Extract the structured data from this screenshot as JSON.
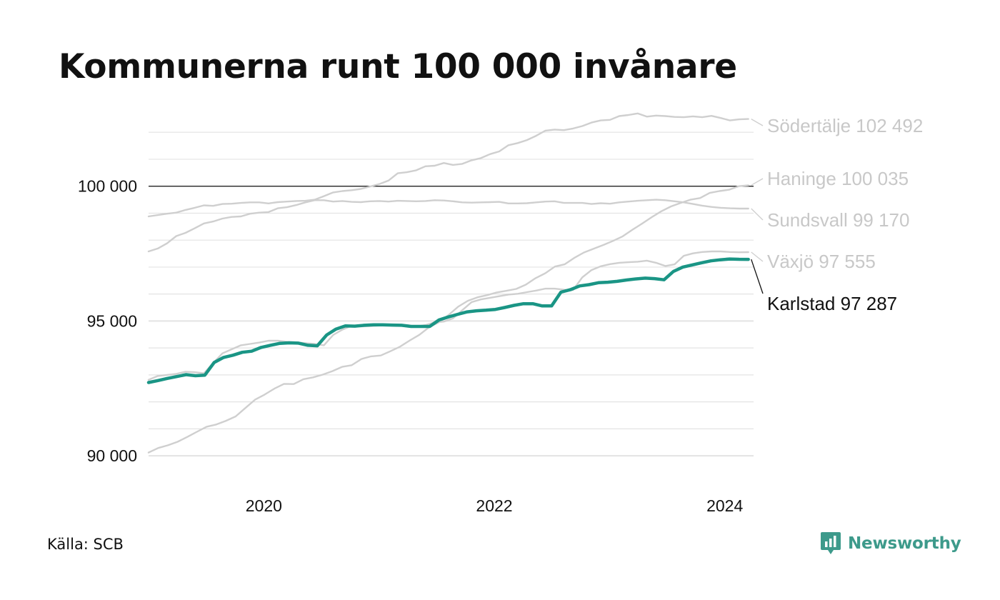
{
  "title": "Kommunerna runt 100 000 invånare",
  "source": "Källa: SCB",
  "brand": {
    "name": "Newsworthy",
    "icon": "newsworthy-logo-icon",
    "color": "#3d9a8b"
  },
  "colors": {
    "highlight": "#1a9585",
    "muted": "#cfcfcf",
    "grid": "#e3e3e3",
    "axis": "#111111",
    "mutedLabel": "#c8c8c8"
  },
  "chart_data": {
    "type": "line",
    "ylim": [
      89500,
      102800
    ],
    "xlim": [
      2019.0,
      2024.25
    ],
    "yticks": [
      {
        "value": 90000,
        "label": "90 000"
      },
      {
        "value": 95000,
        "label": "95 000"
      },
      {
        "value": 100000,
        "label": "100 000"
      }
    ],
    "xticks": [
      {
        "value": 2020.0,
        "label": "2020"
      },
      {
        "value": 2022.0,
        "label": "2022"
      },
      {
        "value": 2024.0,
        "label": "2024"
      }
    ],
    "reference_line": 100000,
    "grid": true,
    "x_start": 2019.0,
    "x_step": 0.0833333,
    "series": [
      {
        "name": "Södertälje",
        "label": "Södertälje 102 492",
        "last_value": "102 492",
        "highlight": false,
        "values": [
          98880,
          98930,
          98980,
          99020,
          99120,
          99200,
          99290,
          99270,
          99340,
          99350,
          99380,
          99400,
          99400,
          99360,
          99410,
          99430,
          99450,
          99460,
          99500,
          99630,
          99770,
          99820,
          99850,
          99900,
          99990,
          100080,
          100210,
          100480,
          100520,
          100590,
          100740,
          100760,
          100860,
          100790,
          100830,
          100960,
          101040,
          101190,
          101290,
          101520,
          101600,
          101710,
          101870,
          102060,
          102100,
          102080,
          102140,
          102230,
          102360,
          102440,
          102460,
          102600,
          102640,
          102700,
          102580,
          102620,
          102600,
          102570,
          102560,
          102590,
          102560,
          102610,
          102530,
          102440,
          102480,
          102492
        ]
      },
      {
        "name": "Haninge",
        "label": "Haninge 100 035",
        "last_value": "100 035",
        "highlight": false,
        "values": [
          90120,
          90290,
          90390,
          90520,
          90700,
          90890,
          91080,
          91160,
          91300,
          91460,
          91770,
          92080,
          92270,
          92490,
          92670,
          92660,
          92840,
          92910,
          93010,
          93140,
          93300,
          93360,
          93590,
          93690,
          93720,
          93880,
          94050,
          94280,
          94490,
          94770,
          94950,
          95220,
          95530,
          95750,
          95880,
          95960,
          96060,
          96120,
          96190,
          96350,
          96590,
          96770,
          97020,
          97100,
          97340,
          97540,
          97680,
          97820,
          97970,
          98140,
          98380,
          98610,
          98850,
          99070,
          99250,
          99380,
          99500,
          99560,
          99750,
          99820,
          99870,
          100000,
          100035
        ]
      },
      {
        "name": "Sundsvall",
        "label": "Sundsvall  99 170",
        "last_value": "99 170",
        "highlight": false,
        "values": [
          97580,
          97690,
          97880,
          98150,
          98270,
          98440,
          98620,
          98690,
          98800,
          98860,
          98880,
          98980,
          99020,
          99040,
          99180,
          99220,
          99300,
          99400,
          99480,
          99480,
          99430,
          99450,
          99420,
          99410,
          99440,
          99450,
          99430,
          99460,
          99450,
          99440,
          99450,
          99480,
          99470,
          99440,
          99400,
          99390,
          99400,
          99410,
          99420,
          99360,
          99360,
          99370,
          99400,
          99430,
          99440,
          99380,
          99380,
          99380,
          99340,
          99370,
          99350,
          99400,
          99430,
          99460,
          99480,
          99500,
          99480,
          99440,
          99400,
          99340,
          99280,
          99230,
          99200,
          99180,
          99170,
          99170
        ]
      },
      {
        "name": "Växjö",
        "label": "Växjö  97 555",
        "last_value": "97 555",
        "highlight": false,
        "values": [
          92820,
          92960,
          93000,
          93040,
          93120,
          93100,
          93060,
          93440,
          93800,
          93950,
          94100,
          94150,
          94200,
          94270,
          94270,
          94230,
          94210,
          94180,
          94150,
          94100,
          94480,
          94680,
          94820,
          94800,
          94810,
          94830,
          94860,
          94850,
          94850,
          94800,
          94850,
          94950,
          94980,
          95100,
          95400,
          95700,
          95800,
          95860,
          95920,
          95980,
          96010,
          96070,
          96130,
          96200,
          96200,
          96160,
          96150,
          96620,
          96890,
          97030,
          97110,
          97160,
          97180,
          97200,
          97240,
          97160,
          97040,
          97100,
          97420,
          97510,
          97560,
          97580,
          97580,
          97560,
          97550,
          97555
        ]
      },
      {
        "name": "Karlstad",
        "label": "Karlstad  97 287",
        "last_value": "97 287",
        "highlight": true,
        "values": [
          92720,
          92790,
          92870,
          92940,
          93010,
          92970,
          92990,
          93460,
          93650,
          93730,
          93840,
          93880,
          94020,
          94100,
          94170,
          94190,
          94180,
          94100,
          94080,
          94480,
          94700,
          94820,
          94810,
          94840,
          94860,
          94860,
          94850,
          94840,
          94800,
          94800,
          94800,
          95040,
          95150,
          95250,
          95340,
          95380,
          95400,
          95430,
          95500,
          95580,
          95640,
          95640,
          95560,
          95560,
          96070,
          96160,
          96300,
          96350,
          96420,
          96440,
          96470,
          96520,
          96560,
          96590,
          96570,
          96530,
          96840,
          97000,
          97080,
          97160,
          97230,
          97270,
          97300,
          97290,
          97287
        ]
      }
    ]
  }
}
